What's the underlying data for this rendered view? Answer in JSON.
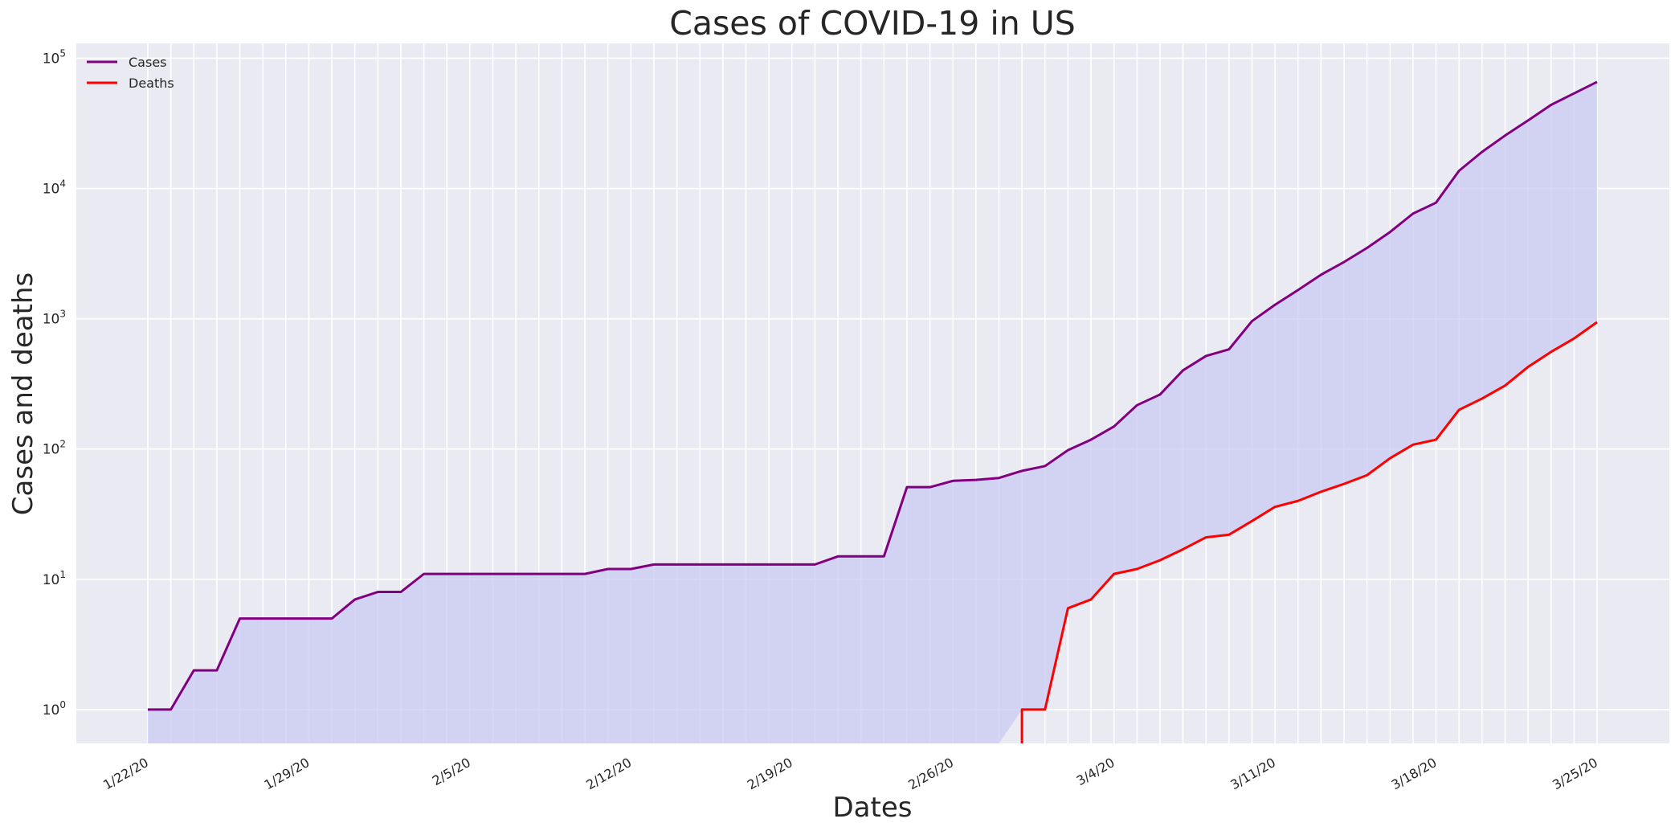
{
  "chart_data": {
    "type": "line",
    "title": "Cases of COVID-19 in US",
    "xlabel": "Dates",
    "ylabel": "Cases and deaths",
    "yscale": "log",
    "ylim": [
      0.55,
      130000
    ],
    "y_ticks": [
      1,
      10,
      100,
      1000,
      10000,
      100000
    ],
    "y_tick_labels": [
      {
        "base": "10",
        "exp": "0"
      },
      {
        "base": "10",
        "exp": "1"
      },
      {
        "base": "10",
        "exp": "2"
      },
      {
        "base": "10",
        "exp": "3"
      },
      {
        "base": "10",
        "exp": "4"
      },
      {
        "base": "10",
        "exp": "5"
      }
    ],
    "x_tick_labels": [
      "1/22/20",
      "1/29/20",
      "2/5/20",
      "2/12/20",
      "2/19/20",
      "2/26/20",
      "3/4/20",
      "3/11/20",
      "3/18/20",
      "3/25/20"
    ],
    "grid": true,
    "legend_position": "top-left",
    "fill_between": {
      "color": "#c7c8f2"
    },
    "dates": [
      "1/22/20",
      "1/23/20",
      "1/24/20",
      "1/25/20",
      "1/26/20",
      "1/27/20",
      "1/28/20",
      "1/29/20",
      "1/30/20",
      "1/31/20",
      "2/1/20",
      "2/2/20",
      "2/3/20",
      "2/4/20",
      "2/5/20",
      "2/6/20",
      "2/7/20",
      "2/8/20",
      "2/9/20",
      "2/10/20",
      "2/11/20",
      "2/12/20",
      "2/13/20",
      "2/14/20",
      "2/15/20",
      "2/16/20",
      "2/17/20",
      "2/18/20",
      "2/19/20",
      "2/20/20",
      "2/21/20",
      "2/22/20",
      "2/23/20",
      "2/24/20",
      "2/25/20",
      "2/26/20",
      "2/27/20",
      "2/28/20",
      "2/29/20",
      "3/1/20",
      "3/2/20",
      "3/3/20",
      "3/4/20",
      "3/5/20",
      "3/6/20",
      "3/7/20",
      "3/8/20",
      "3/9/20",
      "3/10/20",
      "3/11/20",
      "3/12/20",
      "3/13/20",
      "3/14/20",
      "3/15/20",
      "3/16/20",
      "3/17/20",
      "3/18/20",
      "3/19/20",
      "3/20/20",
      "3/21/20",
      "3/22/20",
      "3/23/20",
      "3/24/20",
      "3/25/20"
    ],
    "series": [
      {
        "name": "Cases",
        "color": "#800080",
        "values": [
          1,
          1,
          2,
          2,
          5,
          5,
          5,
          5,
          5,
          7,
          8,
          8,
          11,
          11,
          11,
          11,
          11,
          11,
          11,
          11,
          12,
          12,
          13,
          13,
          13,
          13,
          13,
          13,
          13,
          13,
          15,
          15,
          15,
          51,
          51,
          57,
          58,
          60,
          68,
          74,
          98,
          118,
          149,
          217,
          262,
          402,
          518,
          583,
          959,
          1281,
          1663,
          2179,
          2727,
          3499,
          4632,
          6421,
          7786,
          13680,
          19101,
          25493,
          33276,
          43847,
          53740,
          65778
        ]
      },
      {
        "name": "Deaths",
        "color": "#ff0000",
        "values": [
          0,
          0,
          0,
          0,
          0,
          0,
          0,
          0,
          0,
          0,
          0,
          0,
          0,
          0,
          0,
          0,
          0,
          0,
          0,
          0,
          0,
          0,
          0,
          0,
          0,
          0,
          0,
          0,
          0,
          0,
          0,
          0,
          0,
          0,
          0,
          0,
          0,
          0,
          1,
          1,
          6,
          7,
          11,
          12,
          14,
          17,
          21,
          22,
          28,
          36,
          40,
          47,
          54,
          63,
          85,
          108,
          118,
          200,
          244,
          307,
          427,
          557,
          706,
          942
        ]
      }
    ]
  }
}
